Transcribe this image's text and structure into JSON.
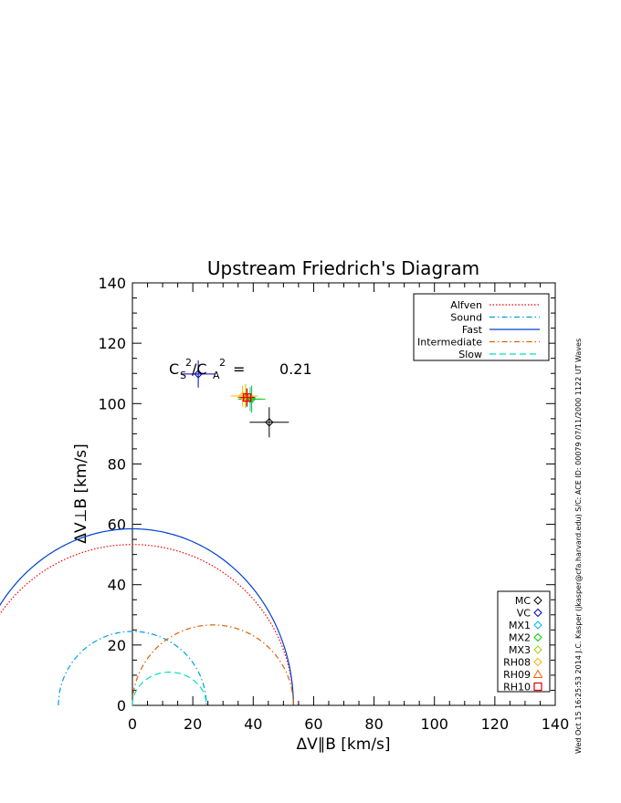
{
  "chart_data": {
    "type": "scatter",
    "title": "Upstream Friedrich's Diagram",
    "xlabel": "ΔV∥B [km/s]",
    "ylabel": "ΔV⊥B [km/s]",
    "xlim": [
      0,
      140
    ],
    "ylim": [
      0,
      140
    ],
    "xticks": [
      "0",
      "20",
      "40",
      "60",
      "80",
      "100",
      "120",
      "140"
    ],
    "yticks": [
      "0",
      "20",
      "40",
      "60",
      "80",
      "100",
      "120",
      "140"
    ],
    "grid": false,
    "annotation": {
      "ratio_label_cs": "C",
      "ratio_label_cs_sub": "S",
      "ratio_label_sup1": "2",
      "ratio_label_slash": "/C",
      "ratio_label_ca_sub": "A",
      "ratio_label_sup2": "2",
      "ratio_label_eq": "=",
      "ratio_value": "0.21"
    },
    "curves_legend_placement": "top-right",
    "curves": [
      {
        "name": "Alfven",
        "color": "#ff0000",
        "style": "dotted",
        "shape": "ellipse",
        "rx": 53.3,
        "ry": 53.3,
        "cx": 0
      },
      {
        "name": "Sound",
        "color": "#00a0e0",
        "style": "dashdot",
        "shape": "ellipse",
        "rx": 24.5,
        "ry": 24.5,
        "cx": 0
      },
      {
        "name": "Fast",
        "color": "#0040d0",
        "style": "solid",
        "shape": "ellipse",
        "rx": 53.3,
        "ry": 58.5,
        "cx": 0
      },
      {
        "name": "Intermediate",
        "color": "#e06000",
        "style": "dashdot",
        "shape": "ellipse",
        "rx": 26.65,
        "ry": 26.65,
        "cx": 26.65
      },
      {
        "name": "Slow",
        "color": "#00e0c0",
        "style": "dashed",
        "shape": "ellipse",
        "rx": 12.25,
        "ry": 11.0,
        "cx": 12.25
      }
    ],
    "points_legend_placement": "bottom-right",
    "points": [
      {
        "name": "MC",
        "color": "#000000",
        "marker": "diamond",
        "x": 45.3,
        "y": 93.8,
        "xerr": 6.5,
        "yerr": 5.0
      },
      {
        "name": "VC",
        "color": "#0000c0",
        "marker": "diamond",
        "x": 21.8,
        "y": 109.8,
        "xerr": 5.5,
        "yerr": 4.5
      },
      {
        "name": "MX1",
        "color": "#00b0ff",
        "marker": "diamond",
        "x": 39.0,
        "y": 101.5,
        "xerr": 3.5,
        "yerr": 4.0
      },
      {
        "name": "MX2",
        "color": "#00d000",
        "marker": "diamond",
        "x": 39.5,
        "y": 101.5,
        "xerr": 4.5,
        "yerr": 4.5
      },
      {
        "name": "MX3",
        "color": "#a0d000",
        "marker": "diamond",
        "x": 37.5,
        "y": 102.5,
        "xerr": 4.0,
        "yerr": 4.0
      },
      {
        "name": "RH08",
        "color": "#ffb000",
        "marker": "diamond",
        "x": 36.5,
        "y": 102.5,
        "xerr": 4.0,
        "yerr": 3.5
      },
      {
        "name": "RH09",
        "color": "#ff6000",
        "marker": "triangle",
        "x": 37.8,
        "y": 102.0,
        "xerr": 3.0,
        "yerr": 3.0
      },
      {
        "name": "RH10",
        "color": "#e00000",
        "marker": "square",
        "x": 38.0,
        "y": 102.0,
        "xerr": 2.5,
        "yerr": 3.0
      }
    ]
  },
  "side_caption": "Wed Oct 15 16:25:53 2014    J.C. Kasper (jkasper@cfa.harvard.edu)    S/C: ACE ID: 00079 07/11/2000    1122 UT Waves"
}
